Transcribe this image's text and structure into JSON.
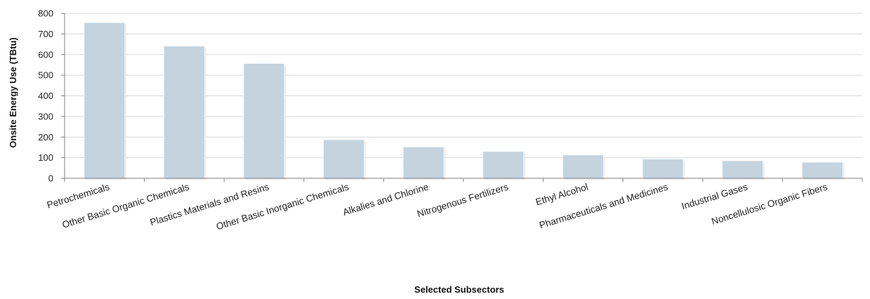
{
  "chart_data": {
    "type": "bar",
    "title": "",
    "xlabel": "Selected Subsectors",
    "ylabel": "Onsite Energy Use (TBtu)",
    "ylim": [
      0,
      800
    ],
    "yticks": [
      0,
      100,
      200,
      300,
      400,
      500,
      600,
      700,
      800
    ],
    "grid": true,
    "categories": [
      "Petrochemicals",
      "Other Basic Organic Chemicals",
      "Plastics Materials and Resins",
      "Other Basic Inorganic Chemicals",
      "Alkalies and Chlorine",
      "Nitrogenous Fertilizers",
      "Ethyl Alcohol",
      "Pharmaceuticals and Medicines",
      "Industrial Gases",
      "Noncellulosic Organic Fibers"
    ],
    "values": [
      755,
      641,
      557,
      187,
      152,
      130,
      113,
      93,
      85,
      78
    ],
    "colors": {
      "bar": "#c4d3de",
      "grid": "#d9d9d9",
      "axis": "#808080"
    }
  }
}
